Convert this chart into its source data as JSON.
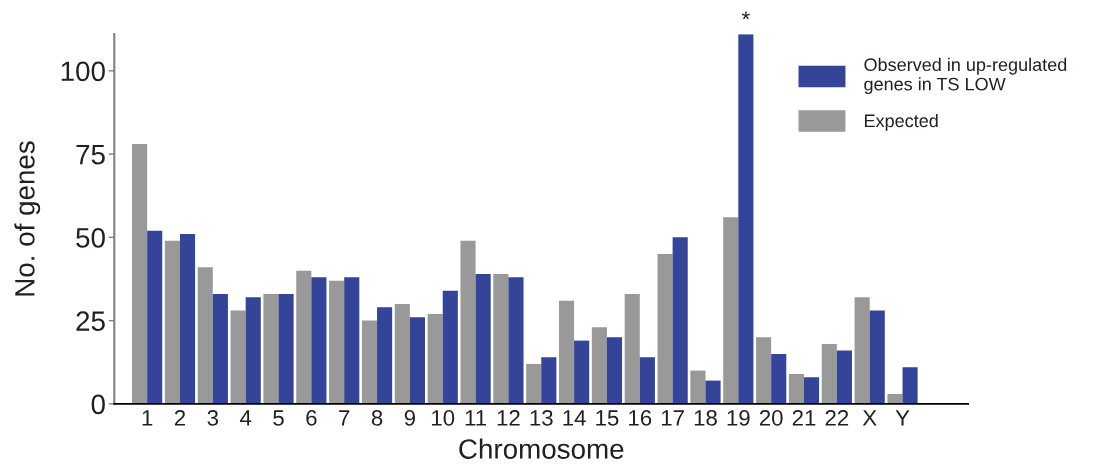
{
  "chart_data": {
    "type": "bar",
    "xlabel": "Chromosome",
    "ylabel": "No. of genes",
    "categories": [
      "1",
      "2",
      "3",
      "4",
      "5",
      "6",
      "7",
      "8",
      "9",
      "10",
      "11",
      "12",
      "13",
      "14",
      "15",
      "16",
      "17",
      "18",
      "19",
      "20",
      "21",
      "22",
      "X",
      "Y"
    ],
    "series": [
      {
        "name": "Expected",
        "color": "#999999",
        "values": [
          78,
          49,
          41,
          28,
          33,
          40,
          37,
          25,
          30,
          27,
          49,
          39,
          12,
          31,
          23,
          33,
          45,
          10,
          56,
          20,
          9,
          18,
          32,
          3
        ]
      },
      {
        "name": "Observed in up-regulated genes in TS LOW",
        "color": "#334499",
        "values": [
          52,
          51,
          33,
          32,
          33,
          38,
          38,
          29,
          26,
          34,
          39,
          38,
          14,
          19,
          20,
          14,
          50,
          7,
          111,
          15,
          8,
          16,
          28,
          11
        ]
      }
    ],
    "ylim": [
      0,
      111
    ],
    "yticks": [
      0,
      25,
      50,
      75,
      100
    ],
    "grid": false,
    "legend": "top right",
    "annotations": [
      {
        "text": "*",
        "x": "19",
        "y": 111
      }
    ]
  }
}
